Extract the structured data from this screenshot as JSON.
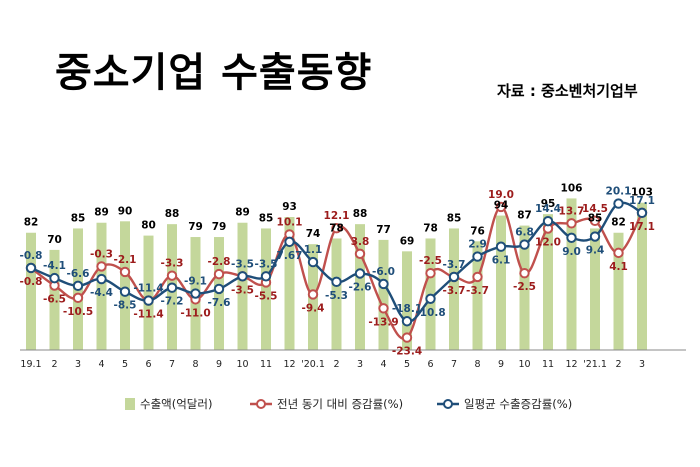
{
  "title": "중소기업 수출동향",
  "source": "자료 : 중소벤처기업부",
  "colors": {
    "bar": "#c4d79b",
    "bar_label": "#000000",
    "yoy_line": "#c0504d",
    "yoy_label": "#9c1c1c",
    "daily_line": "#1f4e79",
    "daily_label": "#1f4e79"
  },
  "chart_data": {
    "type": "bar+line",
    "categories": [
      "19.1",
      "2",
      "3",
      "4",
      "5",
      "6",
      "7",
      "8",
      "9",
      "10",
      "11",
      "12",
      "'20.1",
      "2",
      "3",
      "4",
      "5",
      "6",
      "7",
      "8",
      "9",
      "10",
      "11",
      "12",
      "'21.1",
      "2",
      "3"
    ],
    "series": [
      {
        "name": "수출액(억달러)",
        "type": "bar",
        "values": [
          82,
          70,
          85,
          89,
          90,
          80,
          88,
          79,
          79,
          89,
          85,
          93,
          74,
          78,
          88,
          77,
          69,
          78,
          85,
          76,
          94,
          87,
          95,
          106,
          85,
          82,
          103
        ]
      },
      {
        "name": "전년 동기 대비 증감률(%)",
        "type": "line",
        "values": [
          -0.8,
          -6.5,
          -10.5,
          -0.3,
          -2.1,
          -11.4,
          -3.3,
          -11.0,
          -2.8,
          -3.5,
          -5.5,
          10.1,
          -9.4,
          12.1,
          3.8,
          -13.9,
          -23.4,
          -2.5,
          -3.7,
          -3.7,
          19.0,
          -2.5,
          12.0,
          13.7,
          14.5,
          4.1,
          17.1
        ]
      },
      {
        "name": "일평균 수출증감률(%)",
        "type": "line",
        "values": [
          -0.8,
          -4.1,
          -6.6,
          -4.4,
          -8.5,
          -11.4,
          -7.2,
          -9.1,
          -7.6,
          -3.5,
          -3.5,
          7.67,
          1.1,
          -5.3,
          -2.6,
          -6.0,
          -18.1,
          -10.8,
          -3.7,
          2.9,
          6.1,
          6.8,
          14.4,
          9.0,
          9.4,
          20.1,
          17.1
        ]
      }
    ],
    "bar_labels": [
      "82",
      "70",
      "85",
      "89",
      "90",
      "80",
      "88",
      "79",
      "79",
      "89",
      "85",
      "93",
      "74",
      "78",
      "88",
      "77",
      "69",
      "78",
      "85",
      "76",
      "94",
      "87",
      "95",
      "106",
      "85",
      "82",
      "103"
    ],
    "yoy_labels": [
      "-0.8",
      "-6.5",
      "-10.5",
      "-0.3",
      "-2.1",
      "-11.4",
      "-3.3",
      "-11.0",
      "-2.8",
      "-3.5",
      "-5.5",
      "10.1",
      "-9.4",
      "12.1",
      "3.8",
      "-13.9",
      "-23.4",
      "-2.5",
      "-3.7",
      "-3.7",
      "19.0",
      "-2.5",
      "12.0",
      "13.7",
      "14.5",
      "4.1",
      "17.1"
    ],
    "daily_labels": [
      "-0.8",
      "-4.1",
      "-6.6",
      "-4.4",
      "-8.5",
      "-11.4",
      "-7.2",
      "-9.1",
      "-7.6",
      "-3.5",
      "-3.5",
      "7.67",
      "1.1",
      "-5.3",
      "-2.6",
      "-6.0",
      "-18.1",
      "-10.8",
      "-3.7",
      "2.9",
      "6.1",
      "6.8",
      "14.4",
      "9.0",
      "9.4",
      "20.1",
      "17.1"
    ],
    "legend": [
      "수출액(억달러)",
      "전년 동기 대비 증감률(%)",
      "일평균 수출증감률(%)"
    ],
    "legend_position": "bottom",
    "grid": false
  }
}
